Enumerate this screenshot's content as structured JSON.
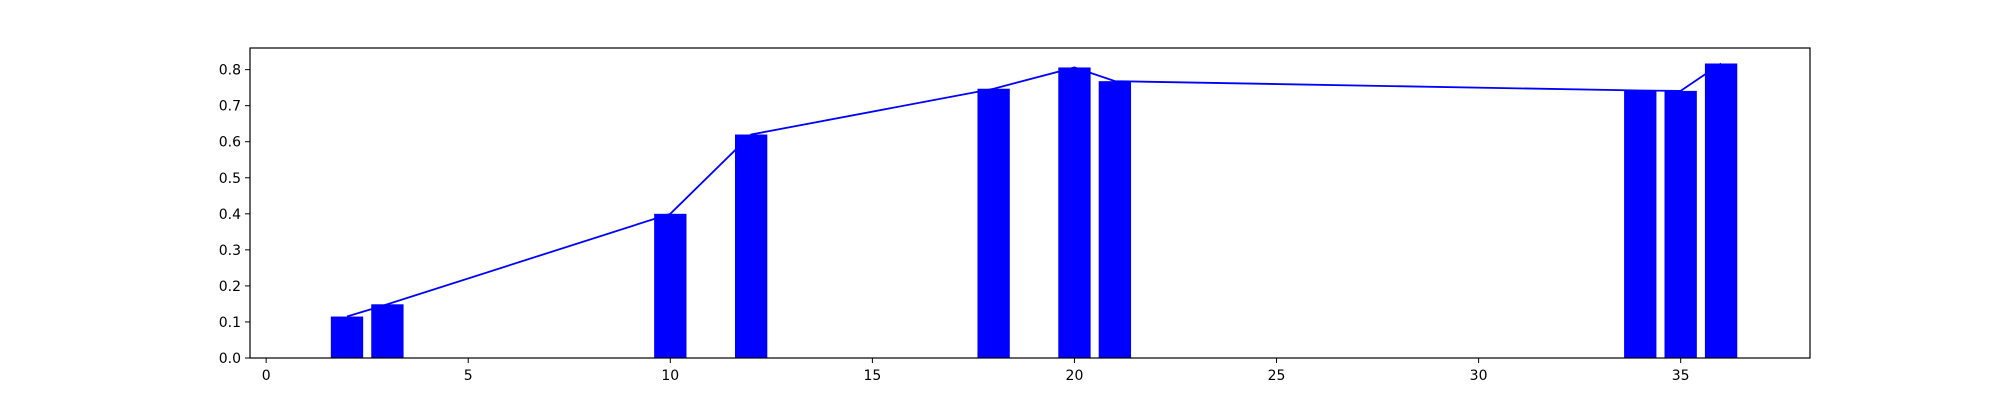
{
  "chart_data": {
    "type": "bar",
    "title": "",
    "xlabel": "",
    "ylabel": "",
    "xlim": [
      -0.4,
      38.2
    ],
    "ylim": [
      0,
      0.86
    ],
    "grid": false,
    "xticks": [
      0,
      5,
      10,
      15,
      20,
      25,
      30,
      35
    ],
    "yticks": [
      0.0,
      0.1,
      0.2,
      0.3,
      0.4,
      0.5,
      0.6,
      0.7,
      0.8
    ],
    "bar_width": 0.8,
    "x": [
      2,
      3,
      10,
      12,
      18,
      20,
      21,
      34,
      35,
      36
    ],
    "values": [
      0.115,
      0.149,
      0.4,
      0.62,
      0.747,
      0.806,
      0.768,
      0.742,
      0.741,
      0.817
    ],
    "line_overlay": true,
    "colors": {
      "bar": "#0000ff",
      "line": "#0000ff",
      "axes": "#000000",
      "background": "#ffffff"
    }
  }
}
